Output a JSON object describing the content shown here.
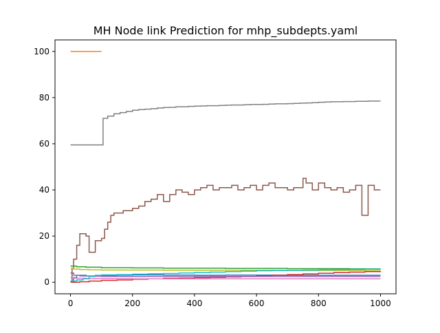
{
  "chart_data": {
    "type": "line",
    "title": "MH Node link Prediction for mhp_subdepts.yaml",
    "xlabel": "",
    "ylabel": "",
    "xlim": [
      -50,
      1050
    ],
    "ylim": [
      -5,
      105
    ],
    "xticks": [
      0,
      200,
      400,
      600,
      800,
      1000
    ],
    "yticks": [
      0,
      20,
      40,
      60,
      80,
      100
    ],
    "grid": false,
    "legend": "none",
    "series": [
      {
        "color": "#1f77b4",
        "x": [
          0,
          10,
          20,
          50,
          80,
          150,
          200,
          300,
          400,
          500,
          600,
          700,
          800,
          900,
          1000
        ],
        "values": [
          0.3,
          2.0,
          3.0,
          2.7,
          2.9,
          3.1,
          3.2,
          3.1,
          3.0,
          3.1,
          3.1,
          3.0,
          3.0,
          3.0,
          3.0
        ]
      },
      {
        "color": "#ff7f0e",
        "x": [
          0,
          100
        ],
        "values": [
          100,
          100
        ]
      },
      {
        "color": "#2ca02c",
        "x": [
          0,
          20,
          50,
          100,
          200,
          300,
          400,
          500,
          600,
          700,
          800,
          900,
          1000
        ],
        "values": [
          7.0,
          6.7,
          6.5,
          6.3,
          6.2,
          6.1,
          6.1,
          6.0,
          6.0,
          5.9,
          5.9,
          5.8,
          5.8
        ]
      },
      {
        "color": "#d62728",
        "x": [
          0,
          30,
          60,
          100,
          150,
          200,
          250,
          300,
          350,
          400,
          450,
          500,
          550,
          600,
          650,
          700,
          750,
          800,
          850,
          900,
          950,
          1000
        ],
        "values": [
          0,
          0.2,
          0.5,
          0.8,
          1.0,
          1.3,
          1.5,
          1.7,
          1.8,
          2.0,
          2.1,
          2.3,
          2.5,
          2.7,
          3.0,
          3.3,
          3.6,
          3.9,
          4.2,
          4.4,
          4.6,
          4.8
        ]
      },
      {
        "color": "#9467bd",
        "x": [
          0,
          10,
          30,
          60,
          100,
          200,
          300,
          400,
          500,
          600,
          700,
          800,
          900,
          1000
        ],
        "values": [
          4.0,
          3.0,
          2.7,
          2.6,
          2.5,
          2.5,
          2.5,
          2.5,
          2.5,
          2.5,
          2.5,
          2.5,
          2.5,
          2.5
        ]
      },
      {
        "color": "#8c564b",
        "x": [
          0,
          5,
          10,
          20,
          30,
          50,
          60,
          80,
          100,
          110,
          120,
          130,
          140,
          150,
          170,
          190,
          200,
          220,
          240,
          260,
          280,
          300,
          320,
          340,
          360,
          380,
          400,
          420,
          440,
          460,
          480,
          500,
          520,
          540,
          560,
          580,
          600,
          620,
          640,
          660,
          680,
          700,
          720,
          740,
          750,
          760,
          780,
          800,
          820,
          840,
          860,
          880,
          900,
          920,
          940,
          960,
          980,
          1000
        ],
        "values": [
          0,
          6,
          10,
          16,
          21,
          20,
          13,
          18,
          19,
          23,
          26,
          29,
          30,
          30,
          31,
          31,
          32,
          33,
          35,
          36,
          38,
          35,
          38,
          40,
          39,
          38,
          40,
          41,
          42,
          40,
          41,
          41,
          42,
          40,
          41,
          42,
          40,
          42,
          43,
          41,
          41,
          40,
          41,
          41,
          45,
          43,
          40,
          43,
          41,
          40,
          41,
          39,
          40,
          42,
          29,
          42,
          40,
          40
        ]
      },
      {
        "color": "#e377c2",
        "x": [
          0,
          10,
          20,
          50,
          100,
          200,
          300,
          400,
          500,
          600,
          700,
          800,
          900,
          1000
        ],
        "values": [
          2.0,
          1.8,
          1.7,
          1.6,
          1.6,
          1.5,
          1.5,
          1.5,
          1.5,
          1.5,
          1.5,
          1.5,
          1.5,
          1.5
        ]
      },
      {
        "color": "#7f7f7f",
        "x": [
          0,
          100,
          105,
          120,
          140,
          160,
          180,
          200,
          220,
          240,
          260,
          280,
          300,
          320,
          340,
          360,
          380,
          400,
          420,
          440,
          460,
          480,
          500,
          520,
          540,
          560,
          580,
          600,
          620,
          640,
          660,
          680,
          700,
          720,
          740,
          760,
          780,
          800,
          820,
          840,
          860,
          880,
          900,
          920,
          940,
          960,
          980,
          1000
        ],
        "values": [
          59.5,
          59.5,
          71,
          72,
          73,
          73.5,
          74,
          74.5,
          74.8,
          75,
          75.2,
          75.5,
          75.7,
          75.8,
          76,
          76,
          76.2,
          76.3,
          76.4,
          76.5,
          76.5,
          76.6,
          76.7,
          76.8,
          76.8,
          76.9,
          77,
          77,
          77.1,
          77.2,
          77.3,
          77.3,
          77.4,
          77.5,
          77.6,
          77.7,
          77.8,
          78,
          78.1,
          78.2,
          78.2,
          78.3,
          78.3,
          78.4,
          78.4,
          78.5,
          78.5,
          78.5
        ]
      },
      {
        "color": "#bcbd22",
        "x": [
          0,
          10,
          30,
          60,
          100,
          200,
          300,
          400,
          500,
          600,
          700,
          800,
          900,
          1000
        ],
        "values": [
          6.0,
          5.7,
          5.5,
          5.4,
          5.3,
          5.3,
          5.2,
          5.2,
          5.2,
          5.2,
          5.1,
          5.1,
          5.1,
          5.1
        ]
      },
      {
        "color": "#17becf",
        "x": [
          0,
          20,
          40,
          60,
          80,
          100,
          150,
          200,
          250,
          300,
          350,
          400,
          450,
          500,
          550,
          600,
          650,
          700,
          750,
          800,
          850,
          900,
          950,
          1000
        ],
        "values": [
          0.5,
          1.0,
          1.5,
          2.5,
          3.0,
          3.2,
          3.3,
          3.5,
          3.7,
          3.8,
          4.0,
          4.2,
          4.4,
          4.6,
          4.8,
          5.0,
          5.1,
          5.2,
          5.3,
          5.4,
          5.5,
          5.6,
          5.7,
          5.8
        ]
      }
    ]
  }
}
